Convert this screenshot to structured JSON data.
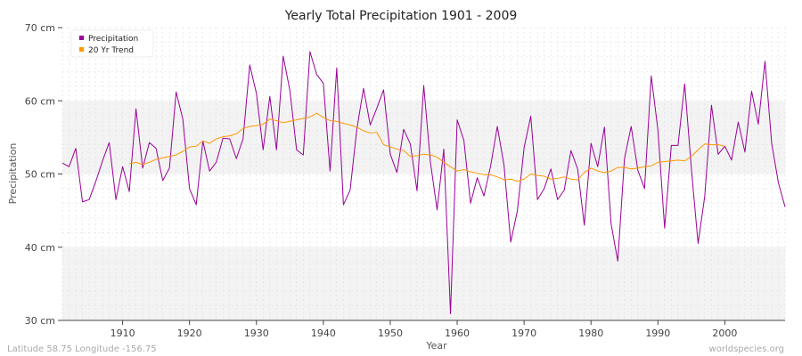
{
  "chart_data": {
    "type": "line",
    "title": "Yearly Total Precipitation 1901 - 2009",
    "xlabel": "Year",
    "ylabel": "Precipitation",
    "xlim": [
      1901,
      2009
    ],
    "ylim": [
      30,
      70
    ],
    "x_ticks": [
      1910,
      1920,
      1930,
      1940,
      1950,
      1960,
      1970,
      1980,
      1990,
      2000
    ],
    "y_ticks": [
      {
        "value": 30,
        "label": "30 cm"
      },
      {
        "value": 40,
        "label": "40 cm"
      },
      {
        "value": 50,
        "label": "50 cm"
      },
      {
        "value": 60,
        "label": "60 cm"
      },
      {
        "value": 70,
        "label": "70 cm"
      }
    ],
    "grid": true,
    "legend_position": "top-left",
    "series": [
      {
        "name": "Precipitation",
        "color": "#990099",
        "x_start": 1901,
        "values": [
          51.5,
          51.0,
          53.5,
          46.2,
          46.5,
          49.0,
          51.8,
          54.3,
          46.5,
          51.0,
          47.6,
          58.9,
          50.8,
          54.3,
          53.5,
          49.1,
          50.8,
          61.2,
          57.5,
          48.0,
          45.8,
          54.5,
          50.4,
          51.6,
          54.9,
          54.8,
          52.1,
          54.8,
          64.9,
          61.0,
          53.3,
          60.6,
          53.3,
          66.1,
          61.4,
          53.3,
          52.6,
          66.7,
          63.6,
          62.4,
          50.4,
          64.5,
          45.8,
          47.8,
          56.1,
          61.7,
          56.7,
          59.0,
          61.5,
          52.7,
          50.2,
          56.1,
          54.1,
          47.7,
          62.1,
          51.6,
          45.1,
          53.4,
          30.9,
          57.4,
          54.6,
          46.0,
          49.5,
          47.0,
          51.1,
          56.5,
          51.2,
          40.7,
          45.0,
          53.6,
          57.9,
          46.5,
          48.0,
          50.7,
          46.5,
          47.8,
          53.2,
          50.7,
          43.0,
          54.2,
          51.0,
          56.4,
          43.2,
          38.1,
          52.1,
          56.5,
          50.5,
          48.0,
          63.4,
          56.0,
          42.6,
          53.9,
          53.9,
          62.3,
          50.7,
          40.5,
          47.0,
          59.4,
          52.7,
          53.8,
          51.9,
          57.1,
          53.0,
          61.3,
          56.8,
          65.4,
          54.2,
          48.8,
          45.5
        ]
      },
      {
        "name": "20 Yr Trend",
        "color": "#ff9900",
        "x_start": 1911,
        "values": [
          51.4,
          51.6,
          51.3,
          51.6,
          52.0,
          52.2,
          52.4,
          52.6,
          53.1,
          53.7,
          53.8,
          54.5,
          54.2,
          54.8,
          55.1,
          55.2,
          55.5,
          56.2,
          56.5,
          56.6,
          56.8,
          57.5,
          57.3,
          57.0,
          57.2,
          57.4,
          57.6,
          57.8,
          58.3,
          57.7,
          57.3,
          57.2,
          56.9,
          56.7,
          56.4,
          55.9,
          55.6,
          55.7,
          54.0,
          53.7,
          53.4,
          53.2,
          52.4,
          52.5,
          52.7,
          52.6,
          52.3,
          51.6,
          51.0,
          50.4,
          50.6,
          50.3,
          50.1,
          49.9,
          49.9,
          49.6,
          49.2,
          49.3,
          49.0,
          49.3,
          50.0,
          49.8,
          49.7,
          49.3,
          49.4,
          49.6,
          49.3,
          49.2,
          50.2,
          50.8,
          50.4,
          50.2,
          50.4,
          50.9,
          50.9,
          50.7,
          50.8,
          51.0,
          51.1,
          51.6,
          51.7,
          51.8,
          51.9,
          51.8,
          52.4,
          53.3,
          54.1,
          54.0,
          54.0,
          53.8
        ]
      }
    ]
  },
  "footer": {
    "location": "Latitude 58.75 Longitude -156.75",
    "source": "worldspecies.org"
  }
}
